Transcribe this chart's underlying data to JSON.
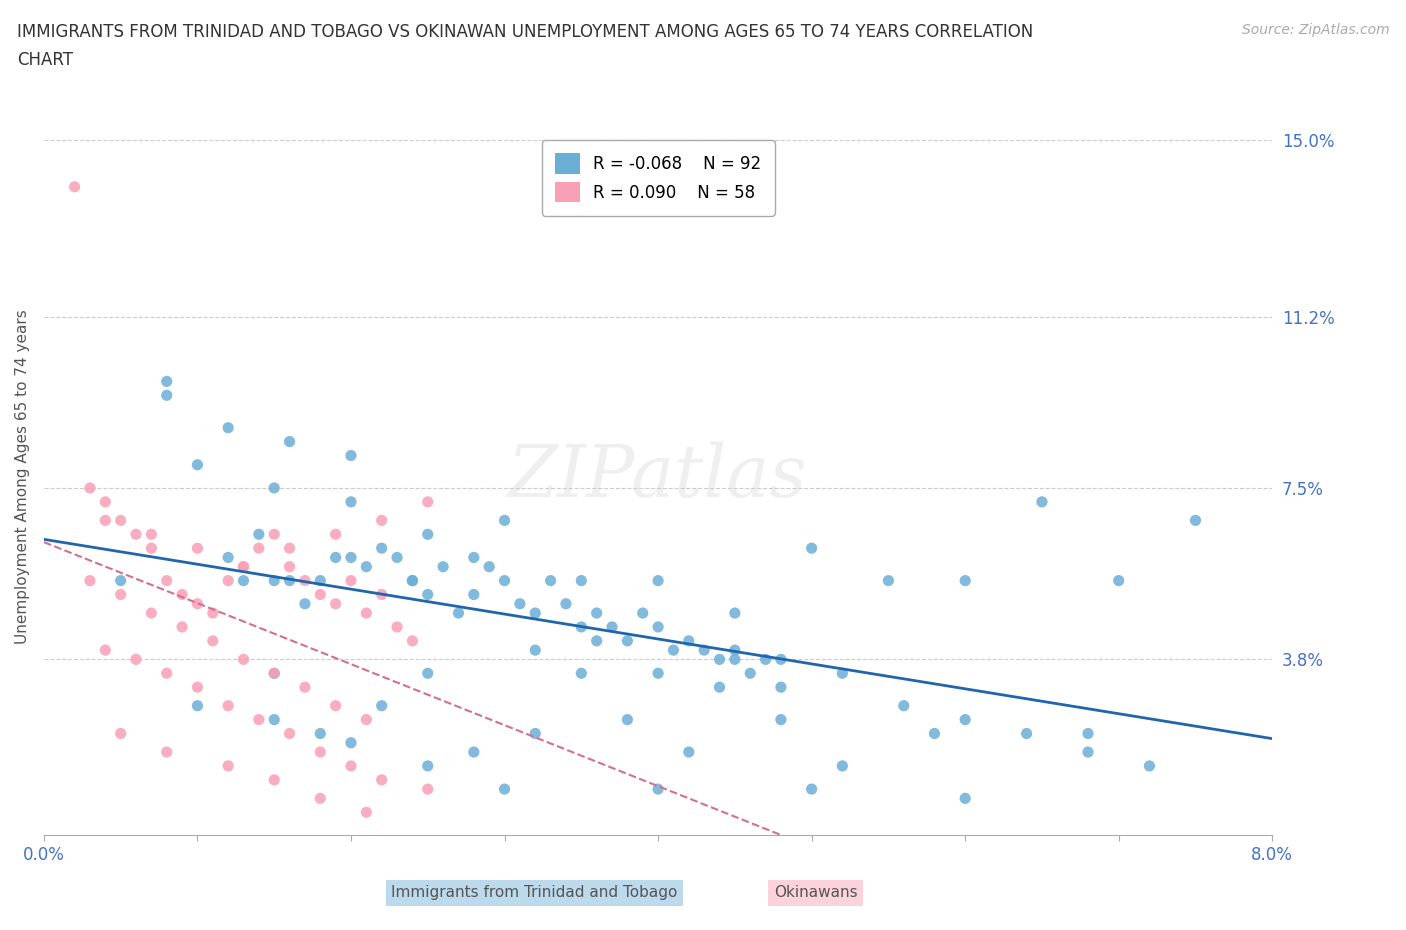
{
  "title_line1": "IMMIGRANTS FROM TRINIDAD AND TOBAGO VS OKINAWAN UNEMPLOYMENT AMONG AGES 65 TO 74 YEARS CORRELATION",
  "title_line2": "CHART",
  "source_text": "Source: ZipAtlas.com",
  "ylabel": "Unemployment Among Ages 65 to 74 years",
  "xlim": [
    0.0,
    0.08
  ],
  "ylim": [
    0.0,
    0.155
  ],
  "ytick_positions": [
    0.038,
    0.075,
    0.112,
    0.15
  ],
  "ytick_labels": [
    "3.8%",
    "7.5%",
    "11.2%",
    "15.0%"
  ],
  "blue_color": "#6baed6",
  "pink_color": "#fa9fb5",
  "blue_line_color": "#2166ac",
  "pink_line_color": "#d4708a",
  "legend_R_blue": "-0.068",
  "legend_N_blue": "92",
  "legend_R_pink": "0.090",
  "legend_N_pink": "58",
  "watermark": "ZIPatlas",
  "blue_scatter_x": [
    0.005,
    0.008,
    0.01,
    0.012,
    0.013,
    0.014,
    0.015,
    0.016,
    0.017,
    0.018,
    0.019,
    0.02,
    0.021,
    0.022,
    0.023,
    0.024,
    0.025,
    0.026,
    0.027,
    0.028,
    0.029,
    0.03,
    0.031,
    0.032,
    0.033,
    0.034,
    0.035,
    0.036,
    0.037,
    0.038,
    0.039,
    0.04,
    0.041,
    0.042,
    0.043,
    0.044,
    0.045,
    0.046,
    0.047,
    0.048,
    0.015,
    0.02,
    0.025,
    0.03,
    0.035,
    0.04,
    0.045,
    0.05,
    0.055,
    0.06,
    0.065,
    0.07,
    0.075,
    0.008,
    0.012,
    0.016,
    0.02,
    0.024,
    0.028,
    0.032,
    0.036,
    0.04,
    0.044,
    0.048,
    0.052,
    0.056,
    0.06,
    0.064,
    0.068,
    0.072,
    0.01,
    0.015,
    0.02,
    0.025,
    0.03,
    0.04,
    0.05,
    0.06,
    0.015,
    0.025,
    0.035,
    0.045,
    0.022,
    0.032,
    0.042,
    0.052,
    0.018,
    0.028,
    0.038,
    0.048,
    0.058,
    0.068
  ],
  "blue_scatter_y": [
    0.055,
    0.095,
    0.08,
    0.06,
    0.055,
    0.065,
    0.055,
    0.055,
    0.05,
    0.055,
    0.06,
    0.06,
    0.058,
    0.062,
    0.06,
    0.055,
    0.052,
    0.058,
    0.048,
    0.06,
    0.058,
    0.055,
    0.05,
    0.048,
    0.055,
    0.05,
    0.045,
    0.048,
    0.045,
    0.042,
    0.048,
    0.045,
    0.04,
    0.042,
    0.04,
    0.038,
    0.04,
    0.035,
    0.038,
    0.032,
    0.075,
    0.072,
    0.065,
    0.068,
    0.055,
    0.055,
    0.048,
    0.062,
    0.055,
    0.055,
    0.072,
    0.055,
    0.068,
    0.098,
    0.088,
    0.085,
    0.082,
    0.055,
    0.052,
    0.04,
    0.042,
    0.035,
    0.032,
    0.038,
    0.035,
    0.028,
    0.025,
    0.022,
    0.018,
    0.015,
    0.028,
    0.025,
    0.02,
    0.015,
    0.01,
    0.01,
    0.01,
    0.008,
    0.035,
    0.035,
    0.035,
    0.038,
    0.028,
    0.022,
    0.018,
    0.015,
    0.022,
    0.018,
    0.025,
    0.025,
    0.022,
    0.022
  ],
  "pink_scatter_x": [
    0.002,
    0.003,
    0.004,
    0.005,
    0.006,
    0.007,
    0.008,
    0.009,
    0.01,
    0.011,
    0.012,
    0.013,
    0.014,
    0.015,
    0.016,
    0.017,
    0.018,
    0.019,
    0.02,
    0.021,
    0.022,
    0.023,
    0.024,
    0.005,
    0.008,
    0.012,
    0.015,
    0.018,
    0.021,
    0.025,
    0.004,
    0.006,
    0.008,
    0.01,
    0.012,
    0.014,
    0.016,
    0.018,
    0.02,
    0.022,
    0.003,
    0.005,
    0.007,
    0.009,
    0.011,
    0.013,
    0.015,
    0.017,
    0.019,
    0.021,
    0.004,
    0.007,
    0.01,
    0.013,
    0.016,
    0.019,
    0.022,
    0.025
  ],
  "pink_scatter_y": [
    0.14,
    0.075,
    0.072,
    0.068,
    0.065,
    0.062,
    0.055,
    0.052,
    0.05,
    0.048,
    0.055,
    0.058,
    0.062,
    0.065,
    0.058,
    0.055,
    0.052,
    0.05,
    0.055,
    0.048,
    0.052,
    0.045,
    0.042,
    0.022,
    0.018,
    0.015,
    0.012,
    0.008,
    0.005,
    0.01,
    0.04,
    0.038,
    0.035,
    0.032,
    0.028,
    0.025,
    0.022,
    0.018,
    0.015,
    0.012,
    0.055,
    0.052,
    0.048,
    0.045,
    0.042,
    0.038,
    0.035,
    0.032,
    0.028,
    0.025,
    0.068,
    0.065,
    0.062,
    0.058,
    0.062,
    0.065,
    0.068,
    0.072
  ]
}
